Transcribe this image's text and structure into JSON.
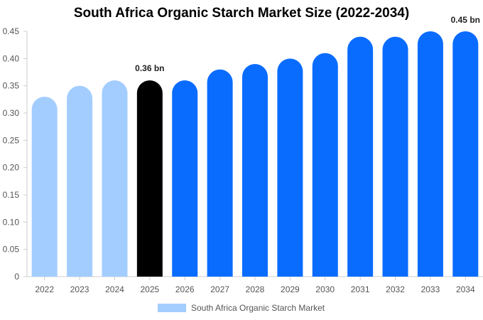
{
  "colors": {
    "historical": "#a3cdff",
    "current": "#000000",
    "forecast": "#0a6cff",
    "axis": "#cccccc",
    "text": "#555555"
  },
  "chart_data": {
    "type": "bar",
    "title": "South Africa Organic Starch Market Size (2022-2034)",
    "categories": [
      "2022",
      "2023",
      "2024",
      "2025",
      "2026",
      "2027",
      "2028",
      "2029",
      "2030",
      "2031",
      "2032",
      "2033",
      "2034"
    ],
    "series": [
      {
        "name": "South Africa Organic Starch Market",
        "values": [
          0.33,
          0.35,
          0.36,
          0.36,
          0.36,
          0.38,
          0.39,
          0.4,
          0.41,
          0.44,
          0.44,
          0.45,
          0.45
        ]
      }
    ],
    "bar_colors": [
      "historical",
      "historical",
      "historical",
      "current",
      "forecast",
      "forecast",
      "forecast",
      "forecast",
      "forecast",
      "forecast",
      "forecast",
      "forecast",
      "forecast"
    ],
    "data_labels": [
      {
        "category": "2025",
        "text": "0.36 bn"
      },
      {
        "category": "2034",
        "text": "0.45 bn"
      }
    ],
    "yticks": [
      "0",
      "0.05",
      "0.10",
      "0.15",
      "0.20",
      "0.25",
      "0.30",
      "0.35",
      "0.40",
      "0.45"
    ],
    "ylim": [
      0,
      0.45
    ],
    "xlabel": "",
    "ylabel": "",
    "grid": false,
    "legend": {
      "position": "bottom",
      "label": "South Africa Organic Starch Market"
    }
  }
}
